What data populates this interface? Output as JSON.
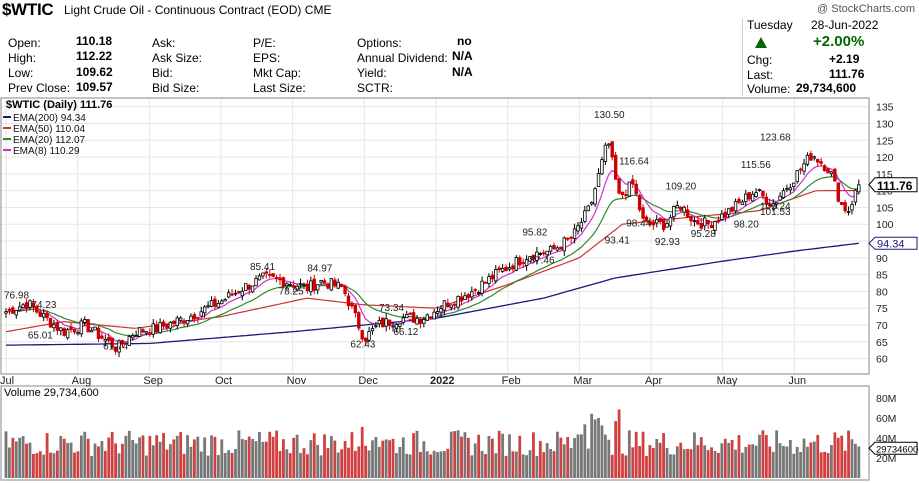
{
  "header": {
    "symbol": "$WTIC",
    "description": "Light Crude Oil - Continuous Contract (EOD)",
    "exchange": "CME",
    "watermark": "@ StockCharts.com",
    "date_weekday": "Tuesday",
    "date": "28-Jun-2022"
  },
  "quote": {
    "open_label": "Open:",
    "open": "110.18",
    "high_label": "High:",
    "high": "112.22",
    "low_label": "Low:",
    "low": "109.62",
    "prev_label": "Prev Close:",
    "prev": "109.57",
    "ask_label": "Ask:",
    "ask_size_label": "Ask Size:",
    "bid_label": "Bid:",
    "bid_size_label": "Bid Size:",
    "pe_label": "P/E:",
    "eps_label": "EPS:",
    "mktcap_label": "Mkt Cap:",
    "lastsize_label": "Last Size:",
    "options_label": "Options:",
    "options": "no",
    "div_label": "Annual Dividend:",
    "div": "N/A",
    "yield_label": "Yield:",
    "yield": "N/A",
    "sctr_label": "SCTR:",
    "change_pct": "+2.00%",
    "chg_label": "Chg:",
    "chg": "+2.19",
    "last_label": "Last:",
    "last": "111.76",
    "volume_label": "Volume:",
    "volume": "29,734,600"
  },
  "colors": {
    "up": "#000000",
    "down": "#cc0000",
    "ema200": "#1a1a7a",
    "ema50": "#cc3333",
    "ema20": "#2d8a2d",
    "ema8": "#cc33cc",
    "volup": "#777777",
    "voldown": "#d04040",
    "green": "#006600"
  },
  "chart_data": {
    "type": "ohlc-candlestick",
    "title": "$WTIC (Daily) 111.76",
    "legend": [
      {
        "name": "EMA(200) 94.34"
      },
      {
        "name": "EMA(50) 110.04"
      },
      {
        "name": "EMA(20) 112.07"
      },
      {
        "name": "EMA(8) 110.29"
      }
    ],
    "x_labels": [
      "Jul",
      "Aug",
      "Sep",
      "Oct",
      "Nov",
      "Dec",
      "2022",
      "Feb",
      "Mar",
      "Apr",
      "May",
      "Jun"
    ],
    "x_label_pos": [
      0.0,
      1.0,
      2.0,
      3.0,
      4.0,
      5.0,
      6.0,
      7.0,
      8.0,
      9.0,
      10.0,
      11.0
    ],
    "y_ticks": [
      60,
      65,
      70,
      75,
      80,
      85,
      90,
      95,
      100,
      105,
      110,
      115,
      120,
      125,
      130,
      135
    ],
    "y_range": [
      56,
      137
    ],
    "last_price_label": "111.76",
    "ema200_label": "94.34",
    "price_annotations": [
      {
        "t": 0.0,
        "v": 76.98,
        "label": "76.98"
      },
      {
        "t": 0.55,
        "v": 74.23,
        "label": "74.23"
      },
      {
        "t": 0.5,
        "v": 65.01,
        "label": "65.01"
      },
      {
        "t": 1.55,
        "v": 61.74,
        "label": "61.74"
      },
      {
        "t": 3.6,
        "v": 85.41,
        "label": "85.41"
      },
      {
        "t": 4.4,
        "v": 84.97,
        "label": "84.97"
      },
      {
        "t": 4.0,
        "v": 78.25,
        "label": "78.25"
      },
      {
        "t": 5.4,
        "v": 73.34,
        "label": "73.34"
      },
      {
        "t": 5.0,
        "v": 62.43,
        "label": "62.43"
      },
      {
        "t": 5.6,
        "v": 66.12,
        "label": "66.12"
      },
      {
        "t": 7.4,
        "v": 95.82,
        "label": "95.82"
      },
      {
        "t": 7.5,
        "v": 87.46,
        "label": "87.46"
      },
      {
        "t": 8.4,
        "v": 130.5,
        "label": "130.50"
      },
      {
        "t": 8.75,
        "v": 116.64,
        "label": "116.64"
      },
      {
        "t": 8.85,
        "v": 98.44,
        "label": "98.44"
      },
      {
        "t": 8.55,
        "v": 93.41,
        "label": "93.41"
      },
      {
        "t": 9.4,
        "v": 109.2,
        "label": "109.20"
      },
      {
        "t": 9.25,
        "v": 92.93,
        "label": "92.93"
      },
      {
        "t": 9.75,
        "v": 95.28,
        "label": "95.28"
      },
      {
        "t": 10.45,
        "v": 115.56,
        "label": "115.56"
      },
      {
        "t": 10.35,
        "v": 98.2,
        "label": "98.20"
      },
      {
        "t": 10.75,
        "v": 103.24,
        "label": "103.24"
      },
      {
        "t": 11.25,
        "v": 123.68,
        "label": "123.68"
      },
      {
        "t": 11.6,
        "v": 101.53,
        "label": "101.53"
      }
    ],
    "price_anchors": [
      [
        0,
        74
      ],
      [
        0.3,
        76.5
      ],
      [
        0.55,
        72
      ],
      [
        0.8,
        68
      ],
      [
        1.1,
        70
      ],
      [
        1.55,
        63
      ],
      [
        1.8,
        68
      ],
      [
        2.1,
        69
      ],
      [
        2.5,
        72
      ],
      [
        3.0,
        77
      ],
      [
        3.3,
        81
      ],
      [
        3.6,
        84
      ],
      [
        3.9,
        83
      ],
      [
        4.2,
        81
      ],
      [
        4.4,
        83
      ],
      [
        4.7,
        81
      ],
      [
        5.0,
        66
      ],
      [
        5.2,
        70
      ],
      [
        5.5,
        72
      ],
      [
        5.8,
        72
      ],
      [
        6.1,
        76
      ],
      [
        6.5,
        80
      ],
      [
        6.9,
        86
      ],
      [
        7.3,
        91
      ],
      [
        7.6,
        92
      ],
      [
        7.9,
        96
      ],
      [
        8.15,
        105
      ],
      [
        8.4,
        125
      ],
      [
        8.55,
        108
      ],
      [
        8.75,
        112
      ],
      [
        8.9,
        100
      ],
      [
        9.2,
        100
      ],
      [
        9.4,
        106
      ],
      [
        9.6,
        101
      ],
      [
        9.8,
        100
      ],
      [
        10.1,
        104
      ],
      [
        10.45,
        110
      ],
      [
        10.7,
        106
      ],
      [
        11.0,
        114
      ],
      [
        11.25,
        121
      ],
      [
        11.5,
        116
      ],
      [
        11.65,
        106
      ],
      [
        11.75,
        104
      ],
      [
        11.9,
        111.76
      ]
    ],
    "ema200_anchors": [
      [
        0,
        64
      ],
      [
        2.0,
        64.5
      ],
      [
        4.0,
        68
      ],
      [
        6.0,
        72
      ],
      [
        7.5,
        78
      ],
      [
        8.5,
        84
      ],
      [
        10.0,
        89
      ],
      [
        11.0,
        92
      ],
      [
        11.9,
        94.34
      ]
    ],
    "ema50_anchors": [
      [
        0,
        68
      ],
      [
        0.8,
        71
      ],
      [
        1.8,
        69
      ],
      [
        3.0,
        72.5
      ],
      [
        4.2,
        78
      ],
      [
        5.0,
        76
      ],
      [
        6.0,
        75
      ],
      [
        7.0,
        82
      ],
      [
        8.0,
        90
      ],
      [
        8.6,
        100
      ],
      [
        9.5,
        102
      ],
      [
        10.5,
        104
      ],
      [
        11.3,
        110
      ],
      [
        11.9,
        110.04
      ]
    ],
    "volume_title": "Volume 29,734,600",
    "volume_ticks": [
      "20M",
      "40M",
      "60M",
      "80M"
    ],
    "volume_label": "29734600",
    "volume_max": 90
  }
}
